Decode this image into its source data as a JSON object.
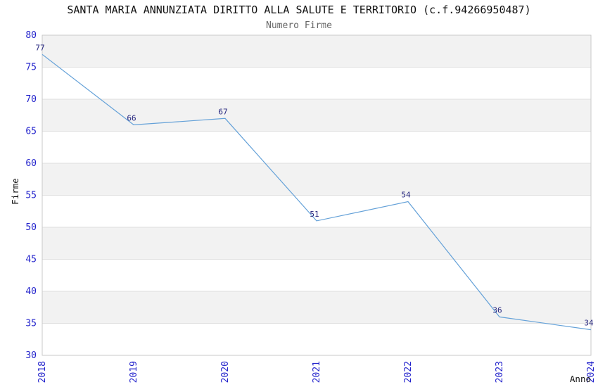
{
  "chart_data": {
    "type": "line",
    "title": "SANTA MARIA ANNUNZIATA DIRITTO ALLA SALUTE E TERRITORIO (c.f.94266950487)",
    "subtitle": "Numero Firme",
    "xlabel": "Anno",
    "ylabel": "Firme",
    "categories": [
      "2018",
      "2019",
      "2020",
      "2021",
      "2022",
      "2023",
      "2024"
    ],
    "values": [
      77,
      66,
      67,
      51,
      54,
      36,
      34
    ],
    "yticks": [
      30,
      35,
      40,
      45,
      50,
      55,
      60,
      65,
      70,
      75,
      80
    ],
    "ylim": [
      30,
      80
    ],
    "ytick_step": 5,
    "grid": "horizontal-bands-alternating",
    "legend": "none",
    "data_labels": true,
    "x_tick_rotation": -90,
    "colors": {
      "line": "#64a1d8",
      "tick_label": "#2424cc",
      "data_label": "#26267f",
      "band_gray": "#f2f2f2",
      "gridline": "#dfdfdf",
      "plot_border": "#c9c9c9",
      "title": "#111111",
      "subtitle": "#666666",
      "axis_title": "#111111",
      "background": "#ffffff"
    }
  }
}
